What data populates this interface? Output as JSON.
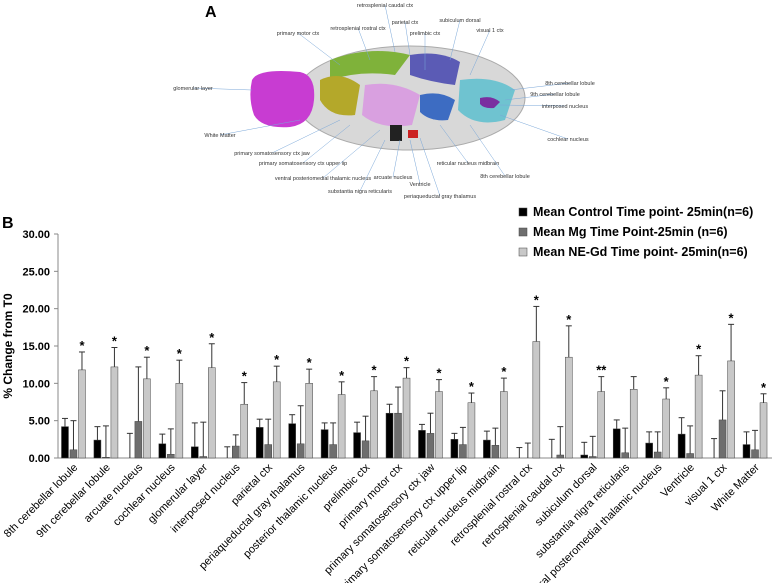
{
  "figure_a": {
    "panel_label": "A",
    "labels": [
      "retrosplenial caudal ctx",
      "parietal ctx",
      "subiculum dorsal",
      "retrosplenial  rostral ctx",
      "primary motor ctx",
      "prelimbic ctx",
      "visual 1 ctx",
      "glomerular layer",
      "8th cerebellar lobule",
      "9th cerebellar lobule",
      "interposed nucleus",
      "White Matter",
      "cochlear nucleus",
      "primary somatosensory ctx jaw",
      "primary somatosensory ctx upper lip",
      "reticular nucleus midbrain",
      "ventral posteriomedial thalamic nucleus",
      "arcuate nucleus",
      "8th cerebellar lobule",
      "Ventricle",
      "substantia nigra reticularis",
      "periaqueductal gray thalamus"
    ]
  },
  "chart_data": {
    "type": "bar",
    "panel_label": "B",
    "y_label": "% Change from T0",
    "categories": [
      "8th cerebellar lobule",
      "9th cerebellar lobule",
      "arcuate nucleus",
      "cochlear nucleus",
      "glomerular layer",
      "interposed nucleus",
      "parietal ctx",
      "periaqueductal gray thalamus",
      "posterior thalamic nucleus",
      "prelimbic ctx",
      "primary motor ctx",
      "primary somatosensory ctx jaw",
      "primary somatosensory ctx upper lip",
      "reticular nucleus midbrain",
      "retrosplenial  rostral ctx",
      "retrosplenial caudal ctx",
      "subiculum dorsal",
      "substantia nigra reticularis",
      "ventral posteromedial thalamic nucleus",
      "Ventricle",
      "visual 1 ctx",
      "White Matter"
    ],
    "series": [
      {
        "name": "Mean Control Time point- 25min(n=6)",
        "color": "#000000",
        "values": [
          4.2,
          2.4,
          0,
          1.9,
          1.5,
          0,
          4.1,
          4.6,
          3.8,
          3.4,
          6.0,
          3.7,
          2.5,
          2.4,
          0,
          0,
          0.4,
          3.9,
          2.0,
          3.2,
          0,
          1.8
        ],
        "errors": [
          1.1,
          1.8,
          3.3,
          1.3,
          3.2,
          1.5,
          1.1,
          1.2,
          0.9,
          1.4,
          1.2,
          0.8,
          0.8,
          1.2,
          1.4,
          2.5,
          1.7,
          1.2,
          1.5,
          2.2,
          2.6,
          1.7
        ]
      },
      {
        "name": "Mean Mg Time Point-25min (n=6)",
        "color": "#6e6e6e",
        "values": [
          1.1,
          0.1,
          4.9,
          0.5,
          0.2,
          1.6,
          1.8,
          1.9,
          1.8,
          2.3,
          6.0,
          3.3,
          1.8,
          1.7,
          0,
          0.4,
          0.2,
          0.7,
          0.8,
          0.6,
          5.1,
          1.1
        ],
        "errors": [
          3.9,
          4.2,
          7.3,
          3.4,
          4.6,
          1.5,
          3.4,
          5.1,
          2.9,
          3.3,
          3.5,
          2.7,
          2.3,
          2.3,
          2.0,
          3.8,
          2.7,
          3.3,
          2.7,
          3.7,
          3.9,
          2.6
        ]
      },
      {
        "name": "Mean NE-Gd Time point- 25min(n=6)",
        "color": "#c8c8c8",
        "values": [
          11.8,
          12.2,
          10.6,
          10.0,
          12.1,
          7.2,
          10.2,
          10.0,
          8.5,
          9.0,
          10.7,
          8.9,
          7.4,
          8.9,
          15.6,
          13.5,
          8.9,
          9.2,
          7.9,
          11.1,
          13.0,
          7.4
        ],
        "errors": [
          2.4,
          2.6,
          2.9,
          3.1,
          3.2,
          2.9,
          2.1,
          1.9,
          1.7,
          1.9,
          1.4,
          1.6,
          1.3,
          1.8,
          4.7,
          4.2,
          2.0,
          1.7,
          1.5,
          2.6,
          4.9,
          1.2
        ]
      }
    ],
    "significance": [
      "*",
      "*",
      "*",
      "*",
      "*",
      "*",
      "*",
      "*",
      "*",
      "*",
      "*",
      "*",
      "*",
      "*",
      "*",
      "*",
      "**",
      null,
      "*",
      "*",
      "*",
      "*"
    ],
    "ylim": [
      0,
      30
    ],
    "yticks": [
      {
        "value": 0,
        "label": "0.00"
      },
      {
        "value": 5,
        "label": "5.00"
      },
      {
        "value": 10,
        "label": "10.00"
      },
      {
        "value": 15,
        "label": "15.00"
      },
      {
        "value": 20,
        "label": "20.00"
      },
      {
        "value": 25,
        "label": "25.00"
      },
      {
        "value": 30,
        "label": "30.00"
      }
    ],
    "grid": false
  }
}
